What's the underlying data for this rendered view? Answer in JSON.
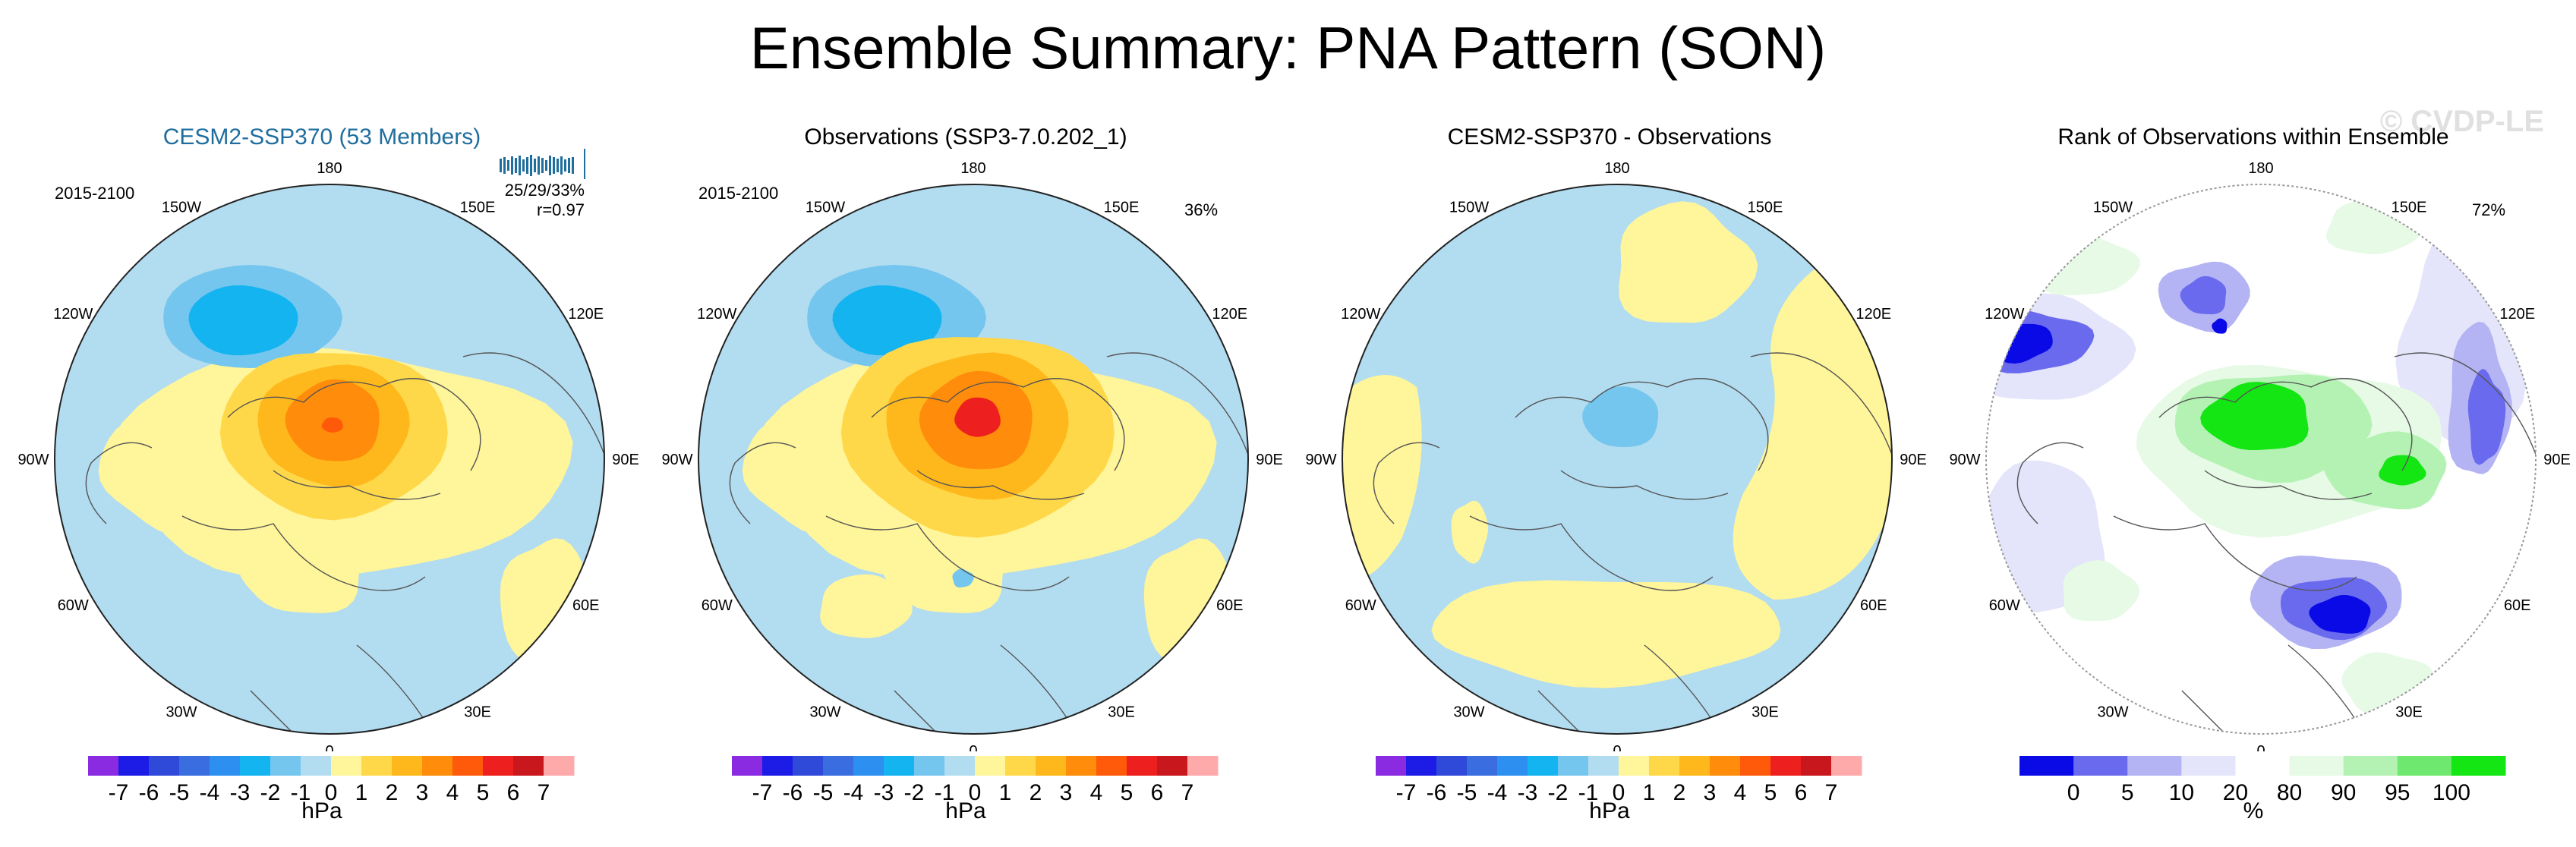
{
  "title": "Ensemble Summary: PNA Pattern (SON)",
  "watermark": "© CVDP-LE",
  "lon_labels": [
    "180",
    "150W",
    "150E",
    "120W",
    "120E",
    "90W",
    "90E",
    "60W",
    "60E",
    "30W",
    "30E",
    "0"
  ],
  "panels": [
    {
      "title": "CESM2-SSP370 (53 Members)",
      "title_color": "#1f6e9e",
      "period": "2015-2100",
      "stats1": "25/29/33%",
      "stats2": "r=0.97",
      "pct": ""
    },
    {
      "title": "Observations (SSP3-7.0.202_1)",
      "title_color": "#000000",
      "period": "2015-2100",
      "stats1": "",
      "stats2": "",
      "pct": "36%"
    },
    {
      "title": "CESM2-SSP370 - Observations",
      "title_color": "#000000",
      "period": "",
      "stats1": "",
      "stats2": "",
      "pct": ""
    },
    {
      "title": "Rank of Observations within Ensemble",
      "title_color": "#000000",
      "period": "",
      "stats1": "",
      "stats2": "",
      "pct": "72%"
    }
  ],
  "hpa_colorbar": {
    "unit": "hPa",
    "labels": [
      "-7",
      "-6",
      "-5",
      "-4",
      "-3",
      "-2",
      "-1",
      "0",
      "1",
      "2",
      "3",
      "4",
      "5",
      "6",
      "7"
    ],
    "colors": [
      "#8a2be2",
      "#1c1ce6",
      "#2f49d8",
      "#3a6ee0",
      "#2d8ff0",
      "#14b4f0",
      "#74c6ee",
      "#b2dcf0",
      "#fff59a",
      "#ffd84a",
      "#ffb81c",
      "#ff8c0a",
      "#ff5a0a",
      "#ee1f1f",
      "#c8181e",
      "#ffaaaa"
    ]
  },
  "rank_colorbar": {
    "unit": "%",
    "labels": [
      "0",
      "5",
      "10",
      "20",
      "80",
      "90",
      "95",
      "100"
    ],
    "colors": [
      "#0a0ae6",
      "#6a6aee",
      "#b4b4f4",
      "#e4e4fa",
      "#ffffff",
      "#e6fae6",
      "#b4f2b4",
      "#6ee86e",
      "#14e614"
    ]
  },
  "map_colors": {
    "ocean_blue": "#b2dcf0",
    "light_yellow": "#fff59a",
    "blue1": "#74c6ee",
    "blue2": "#14b4f0",
    "gold": "#ffd84a",
    "orange": "#ffb81c",
    "dark_orange": "#ff8c0a",
    "red_orange": "#ff5a0a",
    "red": "#ee1f1f"
  }
}
